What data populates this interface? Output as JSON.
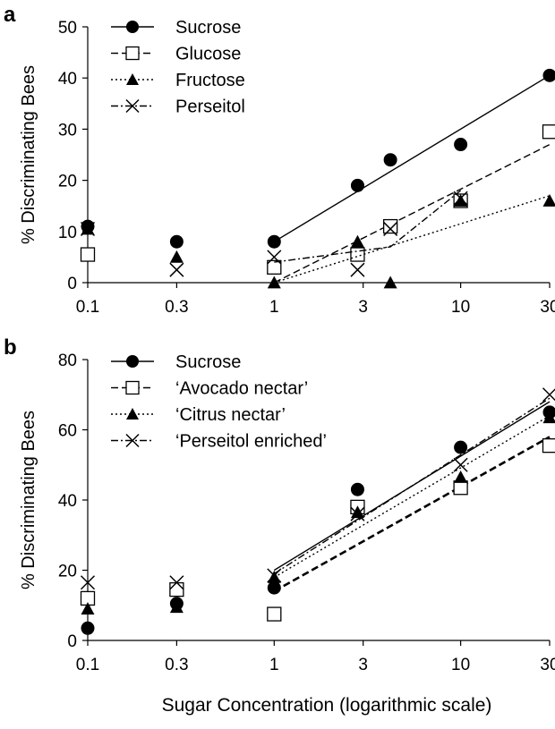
{
  "colors": {
    "ink": "#000000",
    "background": "#ffffff"
  },
  "xlabel": "Sugar Concentration (logarithmic scale)",
  "chart_data": [
    {
      "panel": "a",
      "type": "scatter",
      "xscale": "log",
      "xticks": [
        0.1,
        0.3,
        1,
        3,
        10,
        30
      ],
      "xtick_labels": [
        "0.1",
        "0.3",
        "1",
        "3",
        "10",
        "30"
      ],
      "ylabel": "% Discriminating Bees",
      "ylim": [
        0,
        50
      ],
      "yticks": [
        0,
        10,
        20,
        30,
        40,
        50
      ],
      "legend_position": "top-left",
      "grid": false,
      "series": [
        {
          "name": "Sucrose",
          "marker": "filled-circle",
          "line": "solid",
          "x": [
            0.1,
            0.3,
            1,
            2.8,
            4.2,
            10,
            30
          ],
          "y": [
            11,
            8,
            8,
            19,
            24,
            27,
            40.5
          ],
          "fit": {
            "x": [
              1,
              30
            ],
            "y": [
              8,
              40.5
            ]
          }
        },
        {
          "name": "Glucose",
          "marker": "open-square",
          "line": "dashed",
          "x": [
            0.1,
            1,
            2.8,
            4.2,
            10,
            30
          ],
          "y": [
            5.5,
            3,
            5.5,
            11,
            16,
            29.5
          ],
          "fit": {
            "x": [
              1,
              30
            ],
            "y": [
              0,
              27
            ]
          }
        },
        {
          "name": "Fructose",
          "marker": "filled-triangle",
          "line": "dotted",
          "x": [
            0.1,
            0.3,
            1,
            2.8,
            4.2,
            10,
            30
          ],
          "y": [
            10.5,
            5,
            0,
            8,
            0,
            16,
            16
          ],
          "fit": {
            "x": [
              1,
              30
            ],
            "y": [
              0,
              17
            ]
          }
        },
        {
          "name": "Perseitol",
          "marker": "x",
          "line": "dashdot",
          "x": [
            0.1,
            0.3,
            1,
            2.8,
            4.2,
            10
          ],
          "y": [
            10.5,
            2.5,
            5,
            2.5,
            10.5,
            16.5
          ],
          "fit": {
            "x": [
              1,
              4.2,
              10
            ],
            "y": [
              4,
              7,
              18
            ]
          }
        }
      ]
    },
    {
      "panel": "b",
      "type": "scatter",
      "xscale": "log",
      "xticks": [
        0.1,
        0.3,
        1,
        3,
        10,
        30
      ],
      "xtick_labels": [
        "0.1",
        "0.3",
        "1",
        "3",
        "10",
        "30"
      ],
      "ylabel": "% Discriminating Bees",
      "ylim": [
        0,
        80
      ],
      "yticks": [
        0,
        20,
        40,
        60,
        80
      ],
      "legend_position": "top-left",
      "grid": false,
      "series": [
        {
          "name": "Sucrose",
          "marker": "filled-circle",
          "line": "solid",
          "x": [
            0.1,
            0.3,
            1,
            2.8,
            10,
            30
          ],
          "y": [
            3.5,
            10.5,
            15,
            43,
            55,
            65
          ],
          "fit": {
            "x": [
              1,
              30
            ],
            "y": [
              20,
              68
            ]
          }
        },
        {
          "name": "‘Avocado nectar’",
          "marker": "open-square",
          "line": "dashed",
          "x": [
            0.1,
            0.3,
            1,
            2.8,
            10,
            30
          ],
          "y": [
            12,
            14.5,
            7.5,
            38,
            43.5,
            55.5
          ],
          "fit": {
            "x": [
              1,
              30
            ],
            "y": [
              14,
              58
            ]
          }
        },
        {
          "name": "‘Citrus nectar’",
          "marker": "filled-triangle",
          "line": "dotted",
          "x": [
            0.1,
            0.3,
            1,
            2.8,
            10,
            30
          ],
          "y": [
            9,
            9.5,
            18,
            36.5,
            46.5,
            63.5
          ],
          "fit": {
            "x": [
              1,
              30
            ],
            "y": [
              18,
              64
            ]
          }
        },
        {
          "name": "‘Perseitol enriched’",
          "marker": "x",
          "line": "dashdot",
          "x": [
            0.1,
            0.3,
            1,
            2.8,
            10,
            30
          ],
          "y": [
            16.5,
            16.5,
            18.5,
            36,
            50,
            70
          ],
          "fit": {
            "x": [
              1,
              30
            ],
            "y": [
              19,
              69
            ]
          }
        }
      ]
    }
  ]
}
